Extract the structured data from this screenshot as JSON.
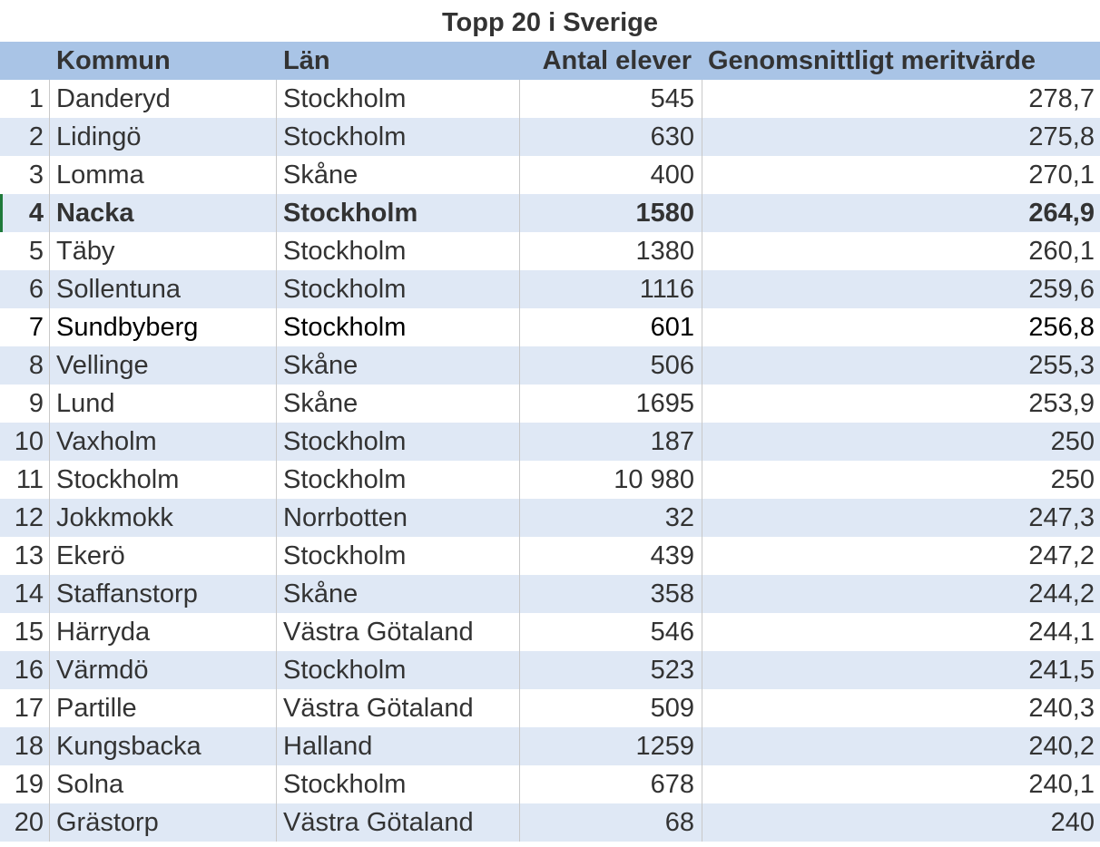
{
  "sheet": {
    "title": "Topp 20 i Sverige",
    "headers": {
      "rank": "",
      "kommun": "Kommun",
      "lan": "Län",
      "antal": "Antal elever",
      "merit": "Genomsnittligt meritvärde"
    },
    "rows": [
      {
        "rank": "1",
        "kommun": "Danderyd",
        "lan": "Stockholm",
        "antal": "545",
        "merit": "278,7"
      },
      {
        "rank": "2",
        "kommun": "Lidingö",
        "lan": "Stockholm",
        "antal": "630",
        "merit": "275,8"
      },
      {
        "rank": "3",
        "kommun": "Lomma",
        "lan": "Skåne",
        "antal": "400",
        "merit": "270,1"
      },
      {
        "rank": "4",
        "kommun": "Nacka",
        "lan": "Stockholm",
        "antal": "1580",
        "merit": "264,9"
      },
      {
        "rank": "5",
        "kommun": "Täby",
        "lan": "Stockholm",
        "antal": "1380",
        "merit": "260,1"
      },
      {
        "rank": "6",
        "kommun": "Sollentuna",
        "lan": "Stockholm",
        "antal": "1116",
        "merit": "259,6"
      },
      {
        "rank": "7",
        "kommun": "Sundbyberg",
        "lan": "Stockholm",
        "antal": "601",
        "merit": "256,8"
      },
      {
        "rank": "8",
        "kommun": "Vellinge",
        "lan": "Skåne",
        "antal": "506",
        "merit": "255,3"
      },
      {
        "rank": "9",
        "kommun": "Lund",
        "lan": "Skåne",
        "antal": "1695",
        "merit": "253,9"
      },
      {
        "rank": "10",
        "kommun": "Vaxholm",
        "lan": "Stockholm",
        "antal": "187",
        "merit": "250"
      },
      {
        "rank": "11",
        "kommun": "Stockholm",
        "lan": "Stockholm",
        "antal": "10 980",
        "merit": "250"
      },
      {
        "rank": "12",
        "kommun": "Jokkmokk",
        "lan": "Norrbotten",
        "antal": "32",
        "merit": "247,3"
      },
      {
        "rank": "13",
        "kommun": "Ekerö",
        "lan": "Stockholm",
        "antal": "439",
        "merit": "247,2"
      },
      {
        "rank": "14",
        "kommun": "Staffanstorp",
        "lan": "Skåne",
        "antal": "358",
        "merit": "244,2"
      },
      {
        "rank": "15",
        "kommun": "Härryda",
        "lan": "Västra Götaland",
        "antal": "546",
        "merit": "244,1"
      },
      {
        "rank": "16",
        "kommun": "Värmdö",
        "lan": "Stockholm",
        "antal": "523",
        "merit": "241,5"
      },
      {
        "rank": "17",
        "kommun": "Partille",
        "lan": "Västra Götaland",
        "antal": "509",
        "merit": "240,3"
      },
      {
        "rank": "18",
        "kommun": "Kungsbacka",
        "lan": "Halland",
        "antal": "1259",
        "merit": "240,2"
      },
      {
        "rank": "19",
        "kommun": "Solna",
        "lan": "Stockholm",
        "antal": "678",
        "merit": "240,1"
      },
      {
        "rank": "20",
        "kommun": "Grästorp",
        "lan": "Västra Götaland",
        "antal": "68",
        "merit": "240"
      }
    ],
    "highlight": {
      "bold_rank": "4",
      "dark_rank": "7"
    },
    "colors": {
      "header_fill": "#a9c4e6",
      "band_fill": "#dfe8f5",
      "active_cell_marker": "#1f7a3a"
    }
  }
}
